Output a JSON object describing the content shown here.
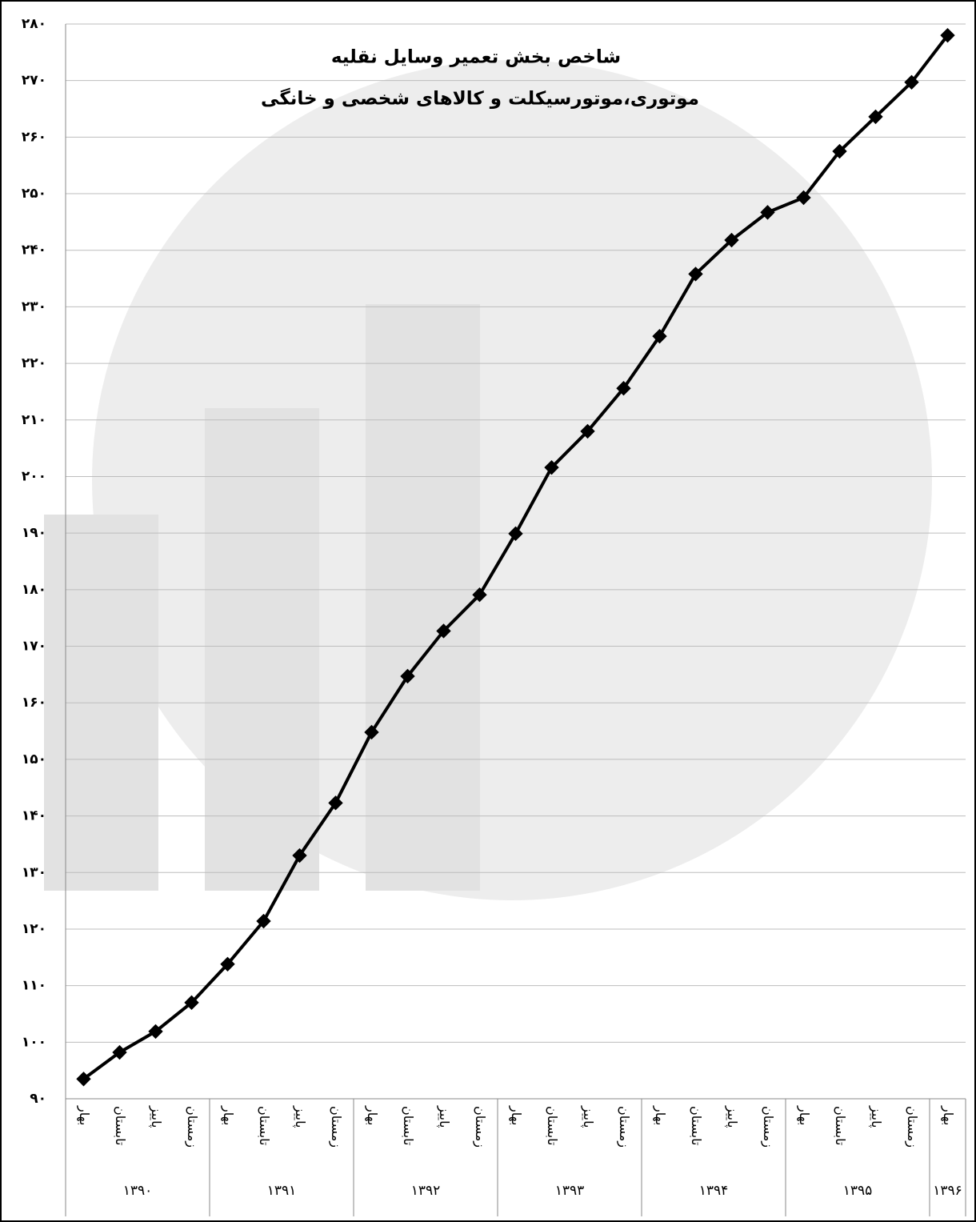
{
  "chart_data": {
    "type": "line",
    "title": "شاخص بخش تعمیر وسایل نقلیه",
    "subtitle": "موتوری،موتورسیکلت و کالاهای شخصی و خانگی",
    "categories": [
      "بهار",
      "تابستان",
      "پاییز",
      "زمستان",
      "بهار",
      "تابستان",
      "پاییز",
      "زمستان",
      "بهار",
      "تابستان",
      "پاییز",
      "زمستان",
      "بهار",
      "تابستان",
      "پاییز",
      "زمستان",
      "بهار",
      "تابستان",
      "پاییز",
      "زمستان",
      "بهار",
      "تابستان",
      "پاییز",
      "زمستان",
      "بهار"
    ],
    "groups": [
      "۱۳۹۰",
      "۱۳۹۱",
      "۱۳۹۲",
      "۱۳۹۳",
      "۱۳۹۴",
      "۱۳۹۵",
      "۱۳۹۶"
    ],
    "series": [
      {
        "color": "#000000",
        "values": [
          93.5,
          98.2,
          101.9,
          107.0,
          113.8,
          121.4,
          133.0,
          142.3,
          154.8,
          164.7,
          172.7,
          179.1,
          189.9,
          201.6,
          208.0,
          215.6,
          224.8,
          235.8,
          241.8,
          246.7,
          249.3,
          257.5,
          263.6,
          269.7,
          278.0
        ]
      }
    ],
    "ylim": [
      90,
      280
    ],
    "yticks": [
      {
        "value": 90,
        "label": "۹۰"
      },
      {
        "value": 100,
        "label": "۱۰۰"
      },
      {
        "value": 110,
        "label": "۱۱۰"
      },
      {
        "value": 120,
        "label": "۱۲۰"
      },
      {
        "value": 130,
        "label": "۱۳۰"
      },
      {
        "value": 140,
        "label": "۱۴۰"
      },
      {
        "value": 150,
        "label": "۱۵۰"
      },
      {
        "value": 160,
        "label": "۱۶۰"
      },
      {
        "value": 170,
        "label": "۱۷۰"
      },
      {
        "value": 180,
        "label": "۱۸۰"
      },
      {
        "value": 190,
        "label": "۱۹۰"
      },
      {
        "value": 200,
        "label": "۲۰۰"
      },
      {
        "value": 210,
        "label": "۲۱۰"
      },
      {
        "value": 220,
        "label": "۲۲۰"
      },
      {
        "value": 230,
        "label": "۲۳۰"
      },
      {
        "value": 240,
        "label": "۲۴۰"
      },
      {
        "value": 250,
        "label": "۲۵۰"
      },
      {
        "value": 260,
        "label": "۲۶۰"
      },
      {
        "value": 270,
        "label": "۲۷۰"
      },
      {
        "value": 280,
        "label": "۲۸۰"
      }
    ],
    "grid": true
  }
}
